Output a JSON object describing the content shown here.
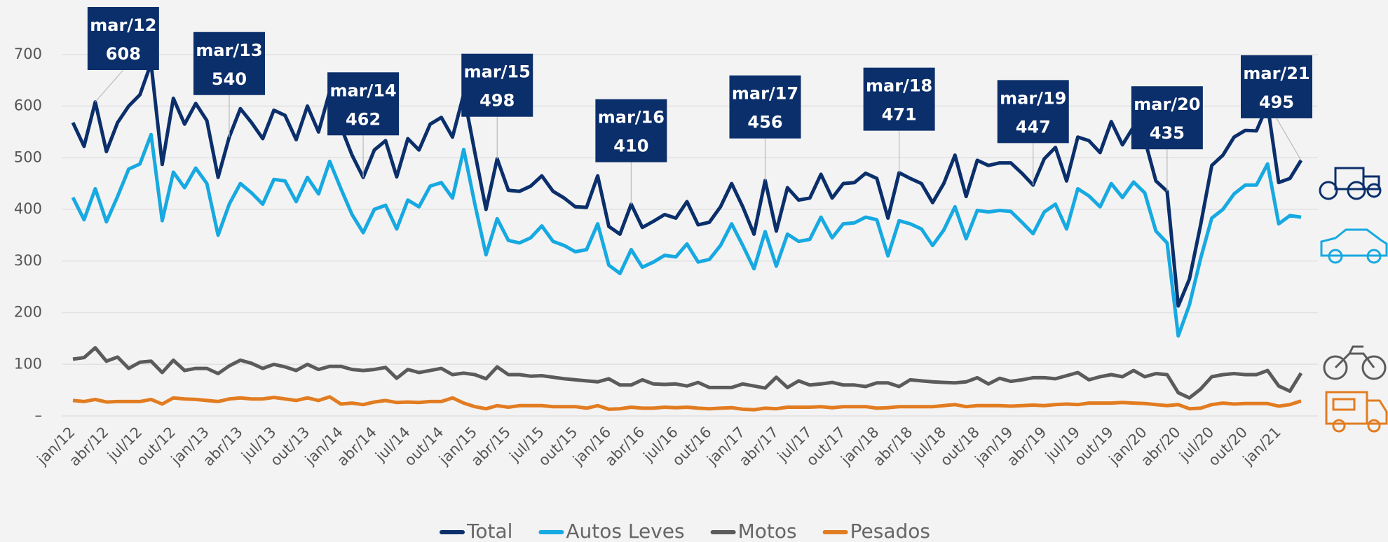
{
  "chart_data": {
    "type": "line",
    "categories": [
      "jan/12",
      null,
      null,
      "abr/12",
      null,
      null,
      "jul/12",
      null,
      null,
      "out/12",
      null,
      null,
      "jan/13",
      null,
      null,
      "abr/13",
      null,
      null,
      "jul/13",
      null,
      null,
      "out/13",
      null,
      null,
      "jan/14",
      null,
      null,
      "abr/14",
      null,
      null,
      "jul/14",
      null,
      null,
      "out/14",
      null,
      null,
      "jan/15",
      null,
      null,
      "abr/15",
      null,
      null,
      "jul/15",
      null,
      null,
      "out/15",
      null,
      null,
      "jan/16",
      null,
      null,
      "abr/16",
      null,
      null,
      "jul/16",
      null,
      null,
      "out/16",
      null,
      null,
      "jan/17",
      null,
      null,
      "abr/17",
      null,
      null,
      "jul/17",
      null,
      null,
      "out/17",
      null,
      null,
      "jan/18",
      null,
      null,
      "abr/18",
      null,
      null,
      "jul/18",
      null,
      null,
      "out/18",
      null,
      null,
      "jan/19",
      null,
      null,
      "abr/19",
      null,
      null,
      "jul/19",
      null,
      null,
      "out/19",
      null,
      null,
      "jan/20",
      null,
      null,
      "abr/20",
      null,
      null,
      "jul/20",
      null,
      null,
      "out/20",
      null,
      null,
      "jan/21",
      null,
      null
    ],
    "series": [
      {
        "name": "Total",
        "color": "#0b2f6b",
        "values": [
          568,
          522,
          608,
          512,
          568,
          600,
          622,
          683,
          487,
          615,
          565,
          605,
          572,
          462,
          540,
          595,
          568,
          537,
          592,
          582,
          535,
          600,
          550,
          628,
          560,
          505,
          462,
          515,
          533,
          463,
          537,
          515,
          565,
          578,
          540,
          623,
          510,
          400,
          498,
          437,
          435,
          445,
          465,
          435,
          422,
          405,
          404,
          465,
          367,
          352,
          410,
          365,
          377,
          390,
          383,
          415,
          370,
          375,
          405,
          450,
          405,
          352,
          456,
          358,
          442,
          418,
          422,
          468,
          422,
          450,
          452,
          470,
          460,
          383,
          471,
          460,
          450,
          413,
          450,
          505,
          425,
          495,
          485,
          490,
          490,
          470,
          447,
          498,
          520,
          455,
          540,
          533,
          510,
          570,
          525,
          560,
          535,
          455,
          435,
          213,
          265,
          370,
          485,
          505,
          540,
          553,
          552,
          602,
          452,
          460,
          495
        ]
      },
      {
        "name": "Autos Leves",
        "color": "#17a9e1",
        "values": [
          423,
          380,
          440,
          376,
          425,
          478,
          488,
          545,
          378,
          472,
          442,
          480,
          450,
          350,
          410,
          450,
          432,
          410,
          458,
          455,
          415,
          462,
          430,
          493,
          440,
          390,
          355,
          400,
          408,
          362,
          418,
          405,
          445,
          452,
          422,
          516,
          410,
          312,
          382,
          340,
          335,
          345,
          368,
          338,
          330,
          318,
          322,
          372,
          292,
          276,
          322,
          288,
          298,
          311,
          308,
          333,
          298,
          303,
          330,
          372,
          330,
          285,
          357,
          290,
          352,
          338,
          342,
          385,
          345,
          372,
          374,
          385,
          380,
          310,
          378,
          372,
          362,
          330,
          360,
          405,
          343,
          398,
          395,
          398,
          396,
          375,
          353,
          395,
          410,
          362,
          440,
          426,
          405,
          450,
          423,
          453,
          432,
          358,
          335,
          155,
          215,
          305,
          383,
          400,
          430,
          447,
          447,
          488,
          372,
          388,
          385
        ]
      },
      {
        "name": "Motos",
        "color": "#5b5b5b",
        "values": [
          110,
          113,
          132,
          106,
          114,
          92,
          104,
          106,
          84,
          108,
          88,
          92,
          92,
          82,
          97,
          108,
          102,
          92,
          100,
          95,
          88,
          100,
          90,
          96,
          96,
          90,
          88,
          90,
          94,
          73,
          90,
          84,
          88,
          92,
          80,
          83,
          80,
          72,
          95,
          80,
          80,
          77,
          78,
          75,
          72,
          70,
          68,
          66,
          72,
          60,
          60,
          70,
          62,
          61,
          62,
          58,
          65,
          55,
          55,
          55,
          62,
          58,
          54,
          75,
          55,
          68,
          60,
          62,
          65,
          60,
          60,
          57,
          64,
          64,
          57,
          70,
          68,
          66,
          65,
          64,
          66,
          74,
          62,
          73,
          67,
          70,
          74,
          74,
          72,
          78,
          84,
          70,
          76,
          80,
          76,
          88,
          76,
          82,
          80,
          45,
          35,
          52,
          76,
          80,
          82,
          80,
          80,
          88,
          58,
          48,
          83
        ]
      },
      {
        "name": "Pesados",
        "color": "#e27c21",
        "values": [
          30,
          28,
          32,
          27,
          28,
          28,
          28,
          32,
          23,
          35,
          33,
          32,
          30,
          28,
          33,
          35,
          33,
          33,
          36,
          33,
          30,
          35,
          30,
          37,
          23,
          25,
          22,
          27,
          30,
          26,
          27,
          26,
          28,
          28,
          35,
          25,
          18,
          14,
          20,
          17,
          20,
          20,
          20,
          18,
          18,
          18,
          15,
          20,
          13,
          14,
          17,
          15,
          15,
          17,
          16,
          17,
          15,
          14,
          15,
          16,
          13,
          12,
          15,
          14,
          17,
          17,
          17,
          18,
          16,
          18,
          18,
          18,
          15,
          16,
          18,
          18,
          18,
          18,
          20,
          22,
          18,
          20,
          20,
          20,
          19,
          20,
          21,
          20,
          22,
          23,
          22,
          25,
          25,
          25,
          26,
          25,
          24,
          22,
          20,
          22,
          14,
          15,
          22,
          25,
          23,
          24,
          24,
          24,
          19,
          22,
          29
        ]
      }
    ],
    "ylim": [
      0,
      800
    ],
    "yticks": [
      {
        "value": 0,
        "label": "–"
      },
      100,
      200,
      300,
      400,
      500,
      600,
      700
    ],
    "grid": true,
    "legend": "bottom",
    "annotations": [
      {
        "text": "mar/12",
        "value": 608
      },
      {
        "text": "mar/13",
        "value": 540
      },
      {
        "text": "mar/14",
        "value": 462
      },
      {
        "text": "mar/15",
        "value": 498
      },
      {
        "text": "mar/16",
        "value": 410
      },
      {
        "text": "mar/17",
        "value": 456
      },
      {
        "text": "mar/18",
        "value": 471
      },
      {
        "text": "mar/19",
        "value": 447
      },
      {
        "text": "mar/20",
        "value": 435
      },
      {
        "text": "mar/21",
        "value": 495
      }
    ]
  }
}
